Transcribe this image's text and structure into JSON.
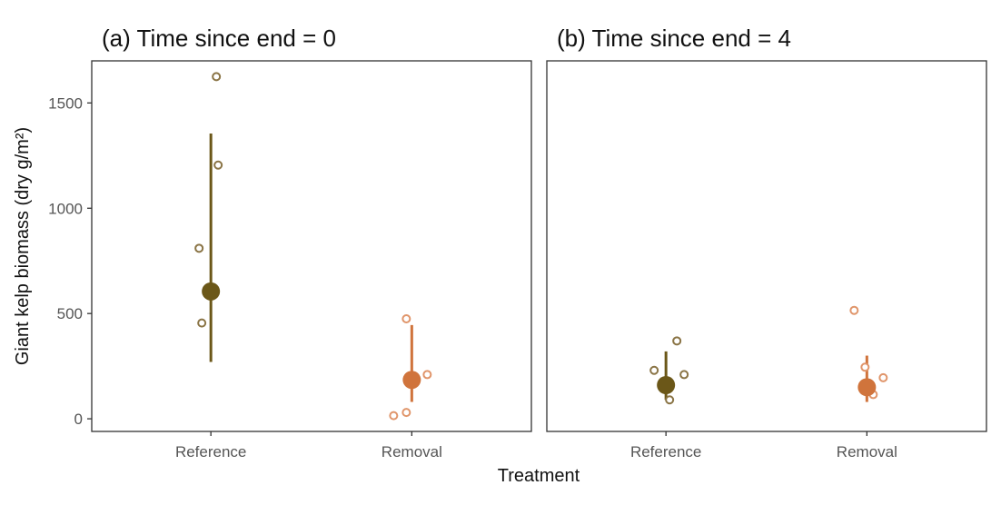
{
  "chart_data": {
    "type": "scatter",
    "xlabel": "Treatment",
    "ylabel": "Giant kelp biomass (dry g/m²)",
    "categories": [
      "Reference",
      "Removal"
    ],
    "ylim": [
      -60,
      1700
    ],
    "yticks": [
      0,
      500,
      1000,
      1500
    ],
    "ytick_labels": [
      "0",
      "500",
      "1000",
      "1500"
    ],
    "grid": false,
    "colors": {
      "Reference": "#6b5718",
      "Removal": "#d0743c",
      "Reference_points": "#8a7445",
      "Removal_points": "#e0956a"
    },
    "panels": [
      {
        "title": "(a) Time since end = 0",
        "groups": [
          {
            "category": "Reference",
            "mean": 605,
            "ci": [
              270,
              1355
            ],
            "points": [
              1625,
              1205,
              810,
              455
            ]
          },
          {
            "category": "Removal",
            "mean": 185,
            "ci": [
              80,
              445
            ],
            "points": [
              475,
              210,
              30,
              15
            ]
          }
        ]
      },
      {
        "title": "(b) Time since end = 4",
        "groups": [
          {
            "category": "Reference",
            "mean": 160,
            "ci": [
              90,
              320
            ],
            "points": [
              370,
              230,
              210,
              90
            ]
          },
          {
            "category": "Removal",
            "mean": 150,
            "ci": [
              80,
              300
            ],
            "points": [
              515,
              245,
              195,
              115
            ]
          }
        ]
      }
    ]
  }
}
